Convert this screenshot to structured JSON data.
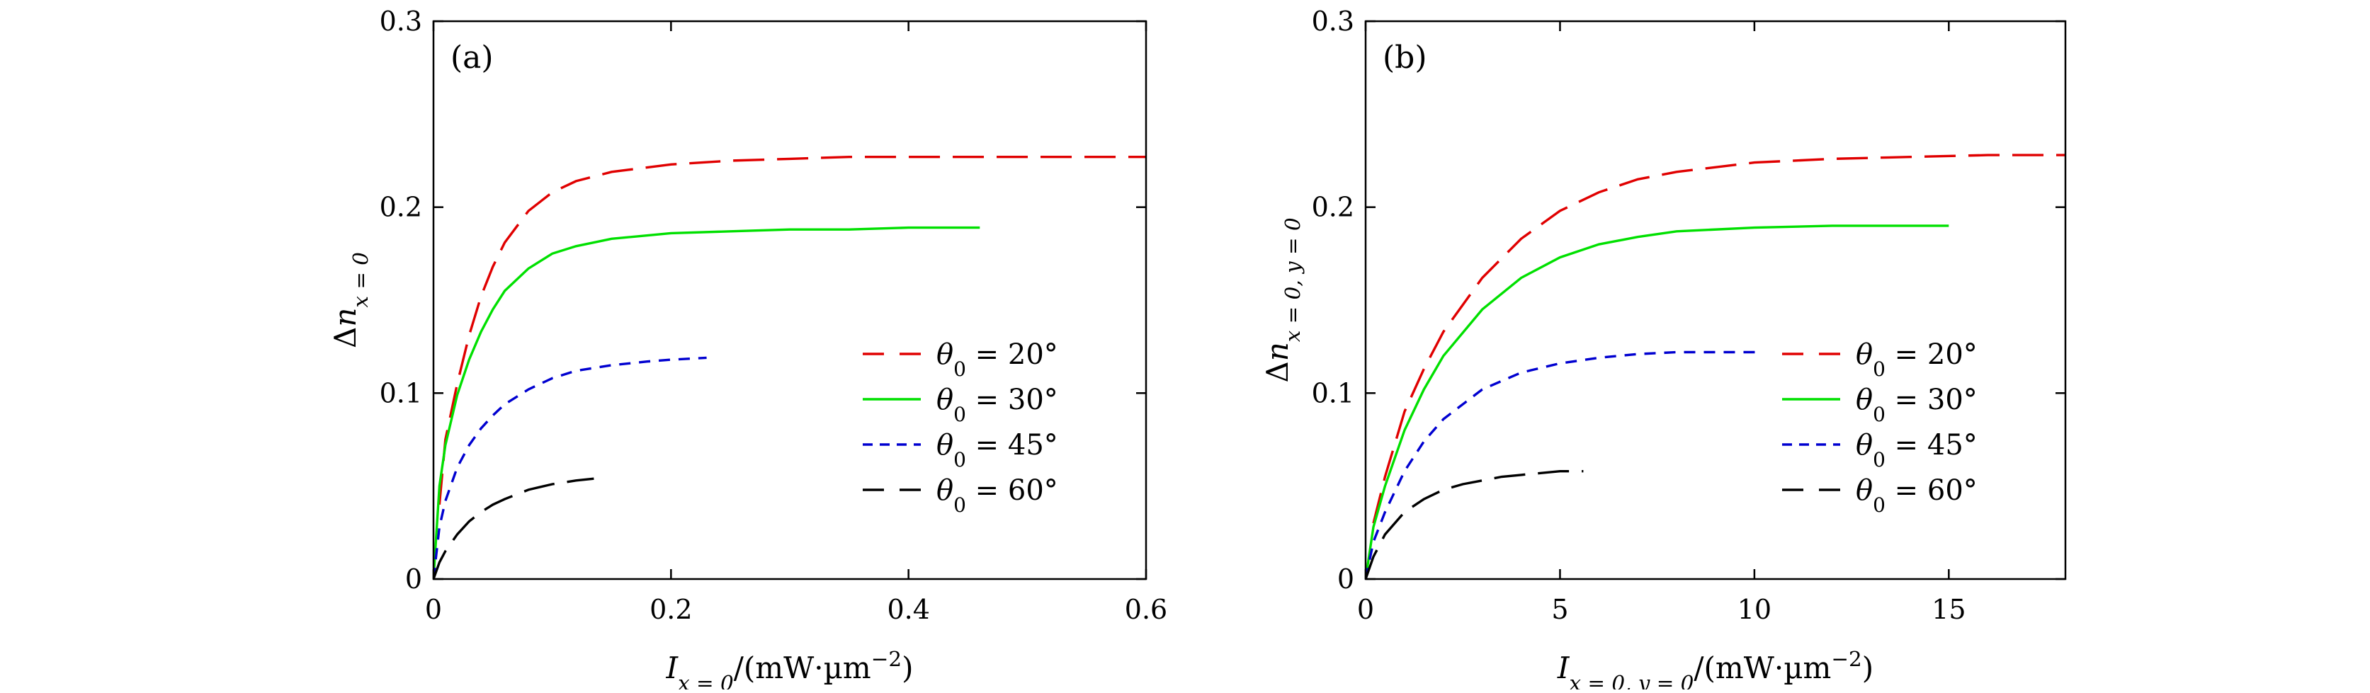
{
  "chart_data": [
    {
      "type": "line",
      "panel_label": "(a)",
      "xlabel": "I x = 0 /(mW·µm −2 )",
      "ylabel": "Δn x = 0",
      "xlim": [
        0,
        0.6
      ],
      "ylim": [
        0,
        0.3
      ],
      "xticks": [
        0,
        0.2,
        0.4,
        0.6
      ],
      "xtick_labels": [
        "0",
        "0.2",
        "0.4",
        "0.6"
      ],
      "yticks": [
        0,
        0.1,
        0.2,
        0.3
      ],
      "ytick_labels": [
        "0",
        "0.1",
        "0.2",
        "0.3"
      ],
      "grid": false,
      "legend_position": "bottom-right",
      "series": [
        {
          "name": "θ0 = 20°",
          "color": "#e00000",
          "dash": "long-dash",
          "x": [
            0.005,
            0.01,
            0.02,
            0.03,
            0.04,
            0.05,
            0.06,
            0.08,
            0.1,
            0.12,
            0.15,
            0.2,
            0.25,
            0.3,
            0.35,
            0.4,
            0.45,
            0.5,
            0.55,
            0.6
          ],
          "y": [
            0.04,
            0.075,
            0.105,
            0.131,
            0.152,
            0.168,
            0.181,
            0.198,
            0.208,
            0.214,
            0.219,
            0.223,
            0.225,
            0.226,
            0.227,
            0.227,
            0.227,
            0.227,
            0.227,
            0.227
          ]
        },
        {
          "name": "θ0 = 30°",
          "color": "#00e000",
          "dash": "solid",
          "x": [
            0.0,
            0.005,
            0.01,
            0.02,
            0.03,
            0.04,
            0.05,
            0.06,
            0.08,
            0.1,
            0.12,
            0.15,
            0.2,
            0.25,
            0.3,
            0.35,
            0.4,
            0.46
          ],
          "y": [
            0.0,
            0.05,
            0.072,
            0.099,
            0.118,
            0.133,
            0.145,
            0.155,
            0.167,
            0.175,
            0.179,
            0.183,
            0.186,
            0.187,
            0.188,
            0.188,
            0.189,
            0.189
          ]
        },
        {
          "name": "θ0 = 45°",
          "color": "#0000d0",
          "dash": "short-dash",
          "x": [
            0.0,
            0.005,
            0.01,
            0.02,
            0.03,
            0.04,
            0.05,
            0.06,
            0.08,
            0.1,
            0.12,
            0.15,
            0.18,
            0.2,
            0.23
          ],
          "y": [
            0.0,
            0.028,
            0.042,
            0.06,
            0.072,
            0.081,
            0.088,
            0.094,
            0.102,
            0.108,
            0.112,
            0.115,
            0.117,
            0.118,
            0.119
          ]
        },
        {
          "name": "θ0 = 60°",
          "color": "#000000",
          "dash": "long-dash",
          "x": [
            0.0,
            0.005,
            0.01,
            0.02,
            0.03,
            0.04,
            0.05,
            0.06,
            0.08,
            0.1,
            0.12,
            0.135
          ],
          "y": [
            0.0,
            0.009,
            0.015,
            0.024,
            0.031,
            0.036,
            0.04,
            0.043,
            0.048,
            0.051,
            0.053,
            0.054
          ]
        }
      ]
    },
    {
      "type": "line",
      "panel_label": "(b)",
      "xlabel": "I x = 0, y = 0 /(mW·µm −2 )",
      "ylabel": "Δn x = 0, y = 0",
      "xlim": [
        0,
        18
      ],
      "ylim": [
        0,
        0.3
      ],
      "xticks": [
        0,
        5,
        10,
        15
      ],
      "xtick_labels": [
        "0",
        "5",
        "10",
        "15"
      ],
      "yticks": [
        0,
        0.1,
        0.2,
        0.3
      ],
      "ytick_labels": [
        "0",
        "0.1",
        "0.2",
        "0.3"
      ],
      "grid": false,
      "legend_position": "bottom-right",
      "series": [
        {
          "name": "θ0 = 20°",
          "color": "#e00000",
          "dash": "long-dash",
          "x": [
            0.2,
            0.5,
            1.0,
            1.5,
            2.0,
            3.0,
            4.0,
            5.0,
            6.0,
            7.0,
            8.0,
            10.0,
            12.0,
            14.0,
            16.0,
            18.0
          ],
          "y": [
            0.03,
            0.055,
            0.09,
            0.113,
            0.133,
            0.162,
            0.183,
            0.198,
            0.208,
            0.215,
            0.219,
            0.224,
            0.226,
            0.227,
            0.228,
            0.228
          ]
        },
        {
          "name": "θ0 = 30°",
          "color": "#00e000",
          "dash": "solid",
          "x": [
            0.0,
            0.2,
            0.5,
            1.0,
            1.5,
            2.0,
            3.0,
            4.0,
            5.0,
            6.0,
            7.0,
            8.0,
            10.0,
            12.0,
            15.0
          ],
          "y": [
            0.0,
            0.028,
            0.05,
            0.08,
            0.102,
            0.12,
            0.145,
            0.162,
            0.173,
            0.18,
            0.184,
            0.187,
            0.189,
            0.19,
            0.19
          ]
        },
        {
          "name": "θ0 = 45°",
          "color": "#0000d0",
          "dash": "short-dash",
          "x": [
            0.0,
            0.2,
            0.5,
            1.0,
            1.5,
            2.0,
            3.0,
            4.0,
            5.0,
            6.0,
            7.0,
            8.0,
            10.2
          ],
          "y": [
            0.0,
            0.02,
            0.036,
            0.058,
            0.074,
            0.086,
            0.102,
            0.111,
            0.116,
            0.119,
            0.121,
            0.122,
            0.122
          ]
        },
        {
          "name": "θ0 = 60°",
          "color": "#000000",
          "dash": "long-dash",
          "x": [
            0.0,
            0.2,
            0.5,
            1.0,
            1.5,
            2.0,
            2.5,
            3.0,
            3.5,
            4.0,
            5.0,
            5.6
          ],
          "y": [
            0.0,
            0.012,
            0.024,
            0.036,
            0.043,
            0.048,
            0.051,
            0.053,
            0.055,
            0.056,
            0.058,
            0.058
          ]
        }
      ]
    }
  ]
}
